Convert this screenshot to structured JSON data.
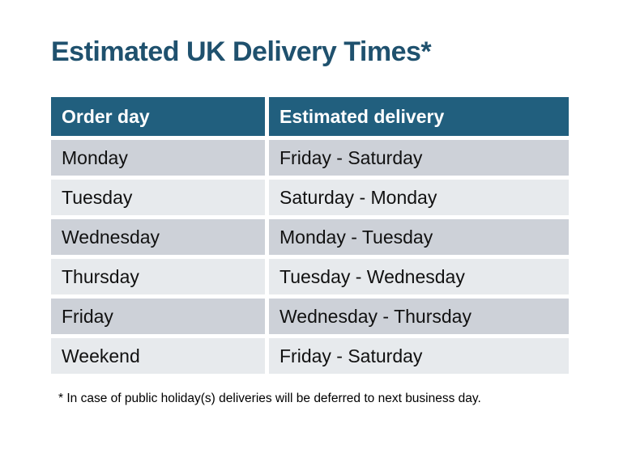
{
  "title": "Estimated UK Delivery Times*",
  "table": {
    "headers": [
      "Order day",
      "Estimated delivery"
    ],
    "rows": [
      {
        "order_day": "Monday",
        "estimated_delivery": "Friday - Saturday"
      },
      {
        "order_day": "Tuesday",
        "estimated_delivery": "Saturday - Monday"
      },
      {
        "order_day": "Wednesday",
        "estimated_delivery": "Monday - Tuesday"
      },
      {
        "order_day": "Thursday",
        "estimated_delivery": "Tuesday - Wednesday"
      },
      {
        "order_day": "Friday",
        "estimated_delivery": "Wednesday - Thursday"
      },
      {
        "order_day": "Weekend",
        "estimated_delivery": "Friday - Saturday"
      }
    ]
  },
  "footnote": "* In case of public holiday(s) deliveries will be deferred to next business day.",
  "colors": {
    "header_bg": "#215F7E",
    "header_text": "#FFFFFF",
    "title_text": "#1F516E",
    "row_dark": "#CDD1D8",
    "row_light": "#E7EAED",
    "cell_text": "#111111"
  }
}
